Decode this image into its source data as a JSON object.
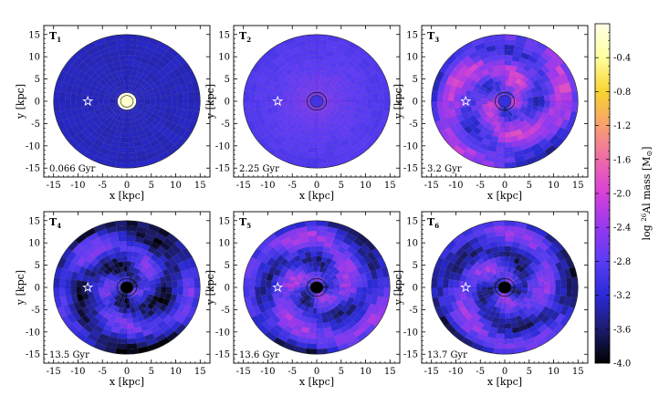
{
  "figure": {
    "colorbar": {
      "label_prefix": "log ",
      "label_sup": "26",
      "label_main": "Al mass [M",
      "label_sun": "⊙",
      "label_suffix": "]",
      "vmin": -4.0,
      "vmax": 0.0,
      "tick_labels": [
        "-0.4",
        "-0.8",
        "-1.2",
        "-1.6",
        "-2.0",
        "-2.4",
        "-2.8",
        "-3.2",
        "-3.6",
        "-4.0"
      ],
      "tick_values": [
        -0.4,
        -0.8,
        -1.2,
        -1.6,
        -2.0,
        -2.4,
        -2.8,
        -3.2,
        -3.6,
        -4.0
      ],
      "colors": [
        "#000000",
        "#1c1c6e",
        "#2a2ad8",
        "#5a3cf4",
        "#9638f0",
        "#d640d8",
        "#ee6aa8",
        "#f8a070",
        "#f8d430",
        "#ffff9e",
        "#ffffe8"
      ]
    },
    "x_tick_labels": [
      "-15",
      "-10",
      "-5",
      "0",
      "5",
      "10",
      "15"
    ],
    "y_tick_labels": [
      "15",
      "10",
      "5",
      "0",
      "-5",
      "-10",
      "-15"
    ],
    "x_axis_label": "x [kpc]",
    "y_axis_label": "y [kpc]"
  },
  "chart_data": [
    {
      "type": "heatmap",
      "panel_label": "T",
      "panel_sub": "1",
      "time_label": "0.066 Gyr",
      "xlabel": "x [kpc]",
      "ylabel": "y [kpc]",
      "xlim": [
        -17,
        17
      ],
      "ylim": [
        -17,
        17
      ],
      "disk_radius_kpc": 15,
      "base_log_mass": -3.3,
      "center_log_mass": -0.15,
      "center_radius_kpc": 1.3,
      "center_halo_log_mass": -0.05,
      "star_position_kpc": [
        -8,
        0
      ]
    },
    {
      "type": "heatmap",
      "panel_label": "T",
      "panel_sub": "2",
      "time_label": "2.25 Gyr",
      "xlabel": "x [kpc]",
      "ylabel": "y [kpc]",
      "xlim": [
        -17,
        17
      ],
      "ylim": [
        -17,
        17
      ],
      "disk_radius_kpc": 15,
      "base_log_mass": -2.7,
      "center_log_mass": -3.0,
      "center_radius_kpc": 1.3,
      "star_position_kpc": [
        -8,
        0
      ]
    },
    {
      "type": "heatmap",
      "panel_label": "T",
      "panel_sub": "3",
      "time_label": "3.2 Gyr",
      "xlabel": "x [kpc]",
      "ylabel": "y [kpc]",
      "xlim": [
        -17,
        17
      ],
      "ylim": [
        -17,
        17
      ],
      "disk_radius_kpc": 15,
      "base_log_mass": -2.6,
      "center_log_mass": -3.1,
      "center_radius_kpc": 1.3,
      "star_position_kpc": [
        -8,
        0
      ]
    },
    {
      "type": "heatmap",
      "panel_label": "T",
      "panel_sub": "4",
      "time_label": "13.5 Gyr",
      "xlabel": "x [kpc]",
      "ylabel": "y [kpc]",
      "xlim": [
        -17,
        17
      ],
      "ylim": [
        -17,
        17
      ],
      "disk_radius_kpc": 15,
      "base_log_mass": -3.2,
      "center_log_mass": -4.0,
      "center_radius_kpc": 1.3,
      "star_position_kpc": [
        -8,
        0
      ]
    },
    {
      "type": "heatmap",
      "panel_label": "T",
      "panel_sub": "5",
      "time_label": "13.6 Gyr",
      "xlabel": "x [kpc]",
      "ylabel": "y [kpc]",
      "xlim": [
        -17,
        17
      ],
      "ylim": [
        -17,
        17
      ],
      "disk_radius_kpc": 15,
      "base_log_mass": -2.9,
      "center_log_mass": -4.0,
      "center_radius_kpc": 1.3,
      "star_position_kpc": [
        -8,
        0
      ]
    },
    {
      "type": "heatmap",
      "panel_label": "T",
      "panel_sub": "6",
      "time_label": "13.7 Gyr",
      "xlabel": "x [kpc]",
      "ylabel": "y [kpc]",
      "xlim": [
        -17,
        17
      ],
      "ylim": [
        -17,
        17
      ],
      "disk_radius_kpc": 15,
      "base_log_mass": -3.0,
      "center_log_mass": -4.0,
      "center_radius_kpc": 1.3,
      "star_position_kpc": [
        -8,
        0
      ]
    }
  ]
}
